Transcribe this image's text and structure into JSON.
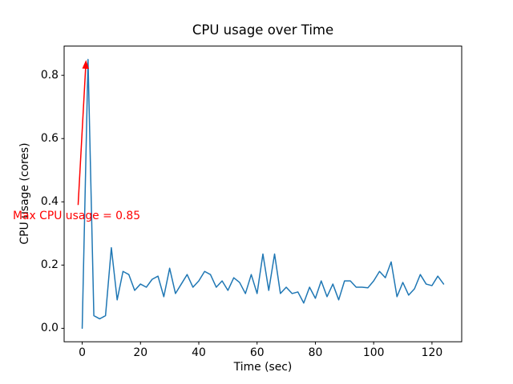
{
  "figure": {
    "background": "#ffffff",
    "spine_color": "#000000",
    "text_color": "#000000"
  },
  "chart_data": {
    "type": "line",
    "title": "CPU usage over Time",
    "xlabel": "Time (sec)",
    "ylabel": "CPU usage (cores)",
    "grid": false,
    "legend": "none",
    "xlim": [
      -6.2,
      130.2
    ],
    "ylim": [
      -0.0425,
      0.8925
    ],
    "xticks": {
      "values": [
        0,
        20,
        40,
        60,
        80,
        100,
        120
      ],
      "labels": [
        "0",
        "20",
        "40",
        "60",
        "80",
        "100",
        "120"
      ]
    },
    "yticks": {
      "values": [
        0.0,
        0.2,
        0.4,
        0.6,
        0.8
      ],
      "labels": [
        "0.0",
        "0.2",
        "0.4",
        "0.6",
        "0.8"
      ]
    },
    "x": [
      0,
      2,
      4,
      6,
      8,
      10,
      12,
      14,
      16,
      18,
      20,
      22,
      24,
      26,
      28,
      30,
      32,
      34,
      36,
      38,
      40,
      42,
      44,
      46,
      48,
      50,
      52,
      54,
      56,
      58,
      60,
      62,
      64,
      66,
      68,
      70,
      72,
      74,
      76,
      78,
      80,
      82,
      84,
      86,
      88,
      90,
      92,
      94,
      96,
      98,
      100,
      102,
      104,
      106,
      108,
      110,
      112,
      114,
      116,
      118,
      120,
      122,
      124
    ],
    "series": [
      {
        "name": "CPU usage",
        "color": "#1f77b4",
        "line_width": 1.5,
        "values": [
          0.0,
          0.85,
          0.04,
          0.03,
          0.04,
          0.255,
          0.09,
          0.18,
          0.17,
          0.12,
          0.14,
          0.13,
          0.155,
          0.165,
          0.1,
          0.19,
          0.11,
          0.14,
          0.17,
          0.13,
          0.15,
          0.18,
          0.17,
          0.13,
          0.15,
          0.12,
          0.16,
          0.145,
          0.11,
          0.17,
          0.11,
          0.235,
          0.12,
          0.235,
          0.11,
          0.13,
          0.11,
          0.115,
          0.08,
          0.13,
          0.095,
          0.15,
          0.1,
          0.14,
          0.09,
          0.15,
          0.15,
          0.13,
          0.13,
          0.128,
          0.15,
          0.18,
          0.16,
          0.21,
          0.1,
          0.145,
          0.105,
          0.125,
          0.17,
          0.14,
          0.135,
          0.165,
          0.14
        ]
      }
    ],
    "max_value": 0.85,
    "annotation": {
      "text": "Max CPU usage = 0.85",
      "color": "#ff0000",
      "xy": [
        2,
        0.85
      ],
      "text_xy": [
        -23.8,
        0.3475
      ],
      "arrow_tail_xy": [
        -1.4,
        0.39
      ],
      "arrow_tip_xy": [
        1.3,
        0.845
      ]
    }
  }
}
